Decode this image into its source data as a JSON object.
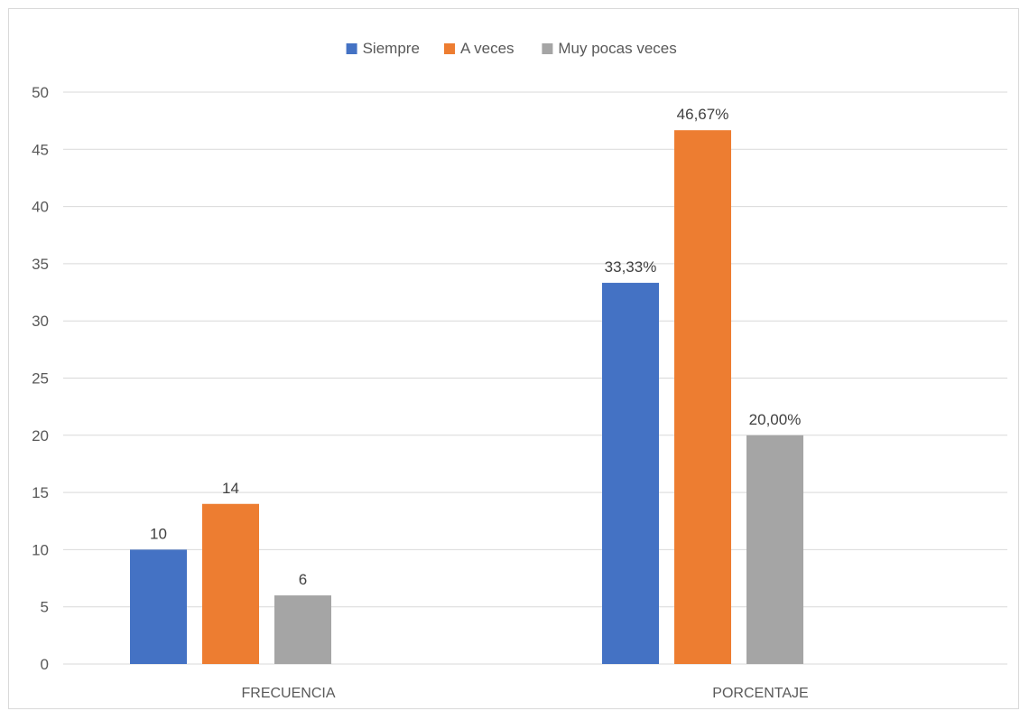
{
  "chart_data": {
    "type": "bar",
    "categories": [
      "FRECUENCIA",
      "PORCENTAJE"
    ],
    "series": [
      {
        "name": "Siempre",
        "color": "#4472C4",
        "values": [
          10,
          33.33
        ],
        "labels": [
          "10",
          "33,33%"
        ]
      },
      {
        "name": "A veces",
        "color": "#ED7D31",
        "values": [
          14,
          46.67
        ],
        "labels": [
          "14",
          "46,67%"
        ]
      },
      {
        "name": "Muy pocas veces",
        "color": "#A5A5A5",
        "values": [
          6,
          20
        ],
        "labels": [
          "6",
          "20,00%"
        ]
      }
    ],
    "ylim": [
      0,
      50
    ],
    "yticks": [
      0,
      5,
      10,
      15,
      20,
      25,
      30,
      35,
      40,
      45,
      50
    ],
    "grid": true,
    "legend_position": "top"
  }
}
